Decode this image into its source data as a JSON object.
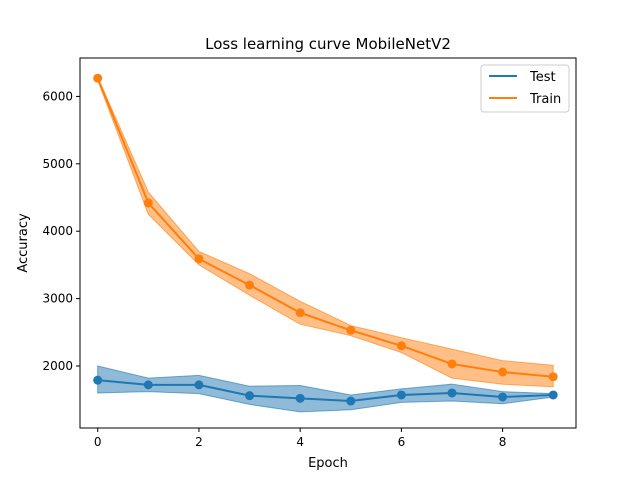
{
  "chart_data": {
    "type": "line",
    "title": "Loss learning curve MobileNetV2",
    "xlabel": "Epoch",
    "ylabel": "Accuracy",
    "x": [
      0,
      1,
      2,
      3,
      4,
      5,
      6,
      7,
      8,
      9
    ],
    "x_ticks": [
      0,
      2,
      4,
      6,
      8
    ],
    "y_ticks": [
      2000,
      3000,
      4000,
      5000,
      6000
    ],
    "xlim": [
      -0.35,
      9.45
    ],
    "ylim": [
      1080,
      6570
    ],
    "grid": false,
    "legend_position": "top-right",
    "series": [
      {
        "name": "Test",
        "color": "#1f77b4",
        "values": [
          1790,
          1720,
          1720,
          1560,
          1520,
          1480,
          1570,
          1600,
          1540,
          1570
        ],
        "lower": [
          1600,
          1620,
          1590,
          1430,
          1320,
          1350,
          1460,
          1480,
          1440,
          1540
        ],
        "upper": [
          2000,
          1820,
          1860,
          1700,
          1710,
          1570,
          1660,
          1730,
          1620,
          1590
        ]
      },
      {
        "name": "Train",
        "color": "#ff7f0e",
        "values": [
          6270,
          4420,
          3590,
          3200,
          2790,
          2530,
          2300,
          2030,
          1910,
          1840
        ],
        "lower": [
          6240,
          4250,
          3500,
          3050,
          2620,
          2450,
          2200,
          1820,
          1730,
          1690
        ],
        "upper": [
          6290,
          4580,
          3700,
          3370,
          2960,
          2600,
          2420,
          2250,
          2080,
          2010
        ]
      }
    ]
  }
}
